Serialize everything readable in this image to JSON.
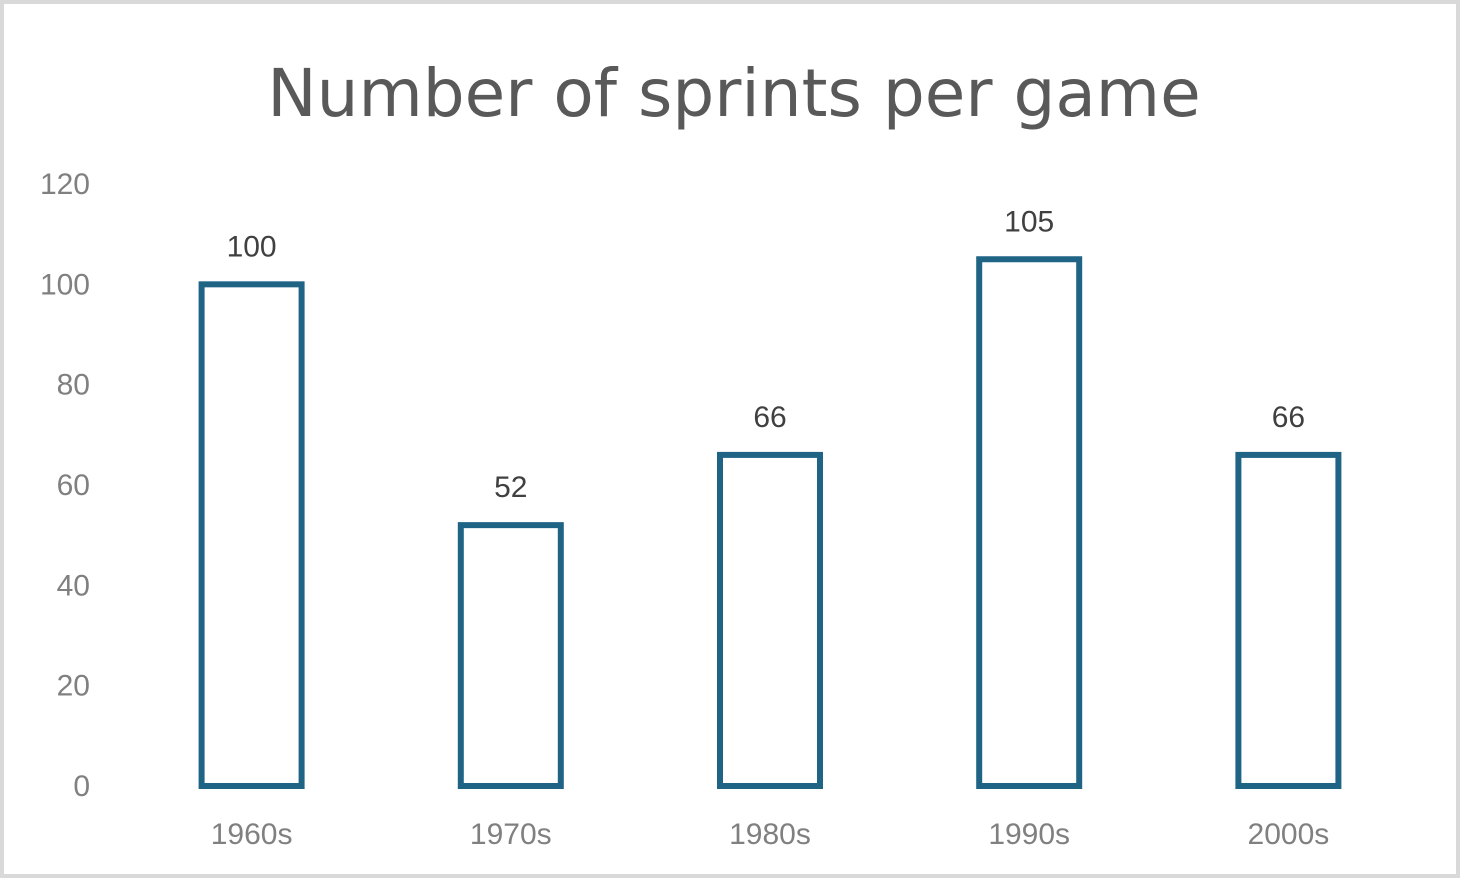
{
  "chart_data": {
    "type": "bar",
    "title": "Number of sprints per game",
    "categories": [
      "1960s",
      "1970s",
      "1980s",
      "1990s",
      "2000s"
    ],
    "values": [
      100,
      52,
      66,
      105,
      66
    ],
    "data_labels": [
      "100",
      "52",
      "66",
      "105",
      "66"
    ],
    "xlabel": "",
    "ylabel": "",
    "ylim": [
      0,
      120
    ],
    "yticks": [
      "0",
      "20",
      "40",
      "60",
      "80",
      "100",
      "120"
    ],
    "grid": false,
    "legend": "none",
    "bar_style": "outline",
    "bar_color": "#1f6385"
  }
}
